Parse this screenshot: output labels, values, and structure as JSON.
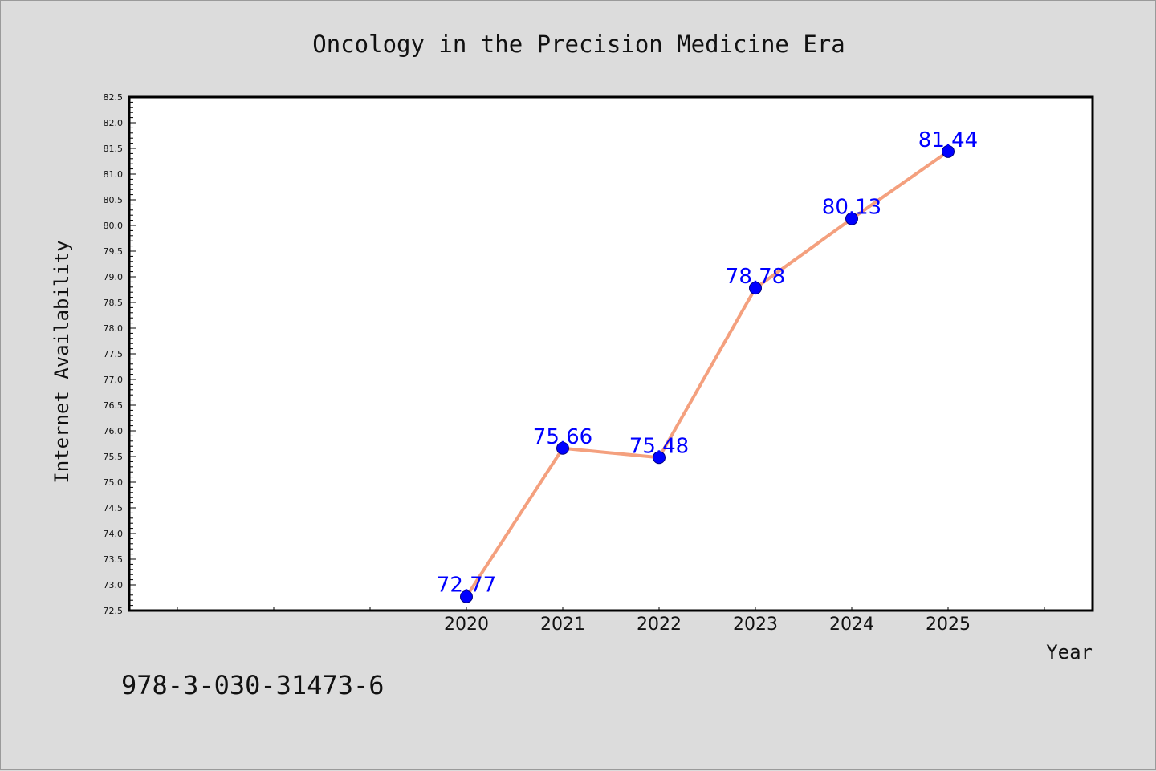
{
  "chart_data": {
    "type": "line",
    "title": "Oncology in the Precision Medicine Era",
    "xlabel": "Year",
    "ylabel": "Internet Availability",
    "x": [
      "2020",
      "2021",
      "2022",
      "2023",
      "2024",
      "2025"
    ],
    "series": [
      {
        "values": [
          72.77,
          75.66,
          75.48,
          78.78,
          80.13,
          81.44
        ],
        "data_labels": [
          "72.77",
          "75.66",
          "75.48",
          "78.78",
          "80.13",
          "81.44"
        ]
      }
    ],
    "ylim": [
      72.5,
      82.5
    ],
    "y_ticks": [
      "72.5",
      "73.0",
      "73.5",
      "74.0",
      "74.5",
      "75.0",
      "75.5",
      "76.0",
      "76.5",
      "77.0",
      "77.5",
      "78.0",
      "78.5",
      "79.0",
      "79.5",
      "80.0",
      "80.5",
      "81.0",
      "81.5",
      "82.0",
      "82.5"
    ],
    "x_slots": 10,
    "grid": false,
    "colors": {
      "line": "#f4a07e",
      "marker": "#0000ff",
      "label": "#0000ff",
      "background": "#dcdcdc",
      "plot": "#ffffff"
    }
  },
  "footer": {
    "isbn": "978-3-030-31473-6"
  }
}
